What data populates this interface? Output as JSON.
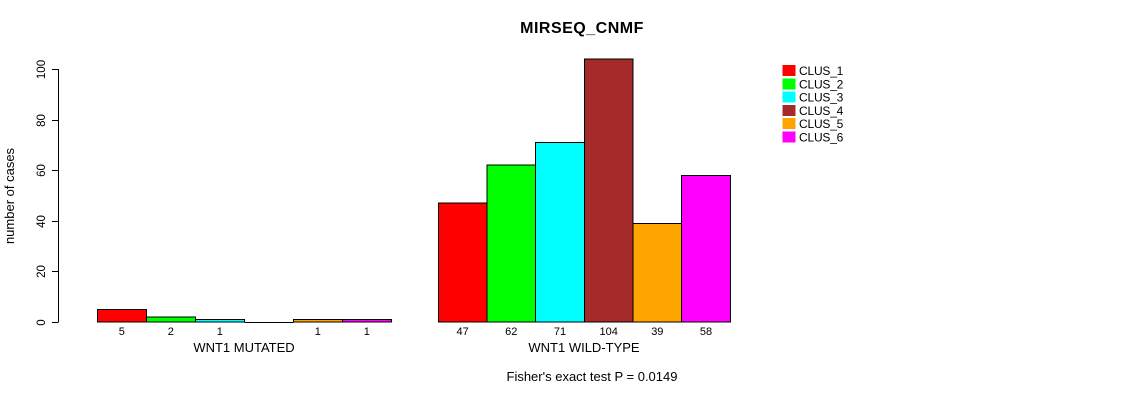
{
  "title": "MIRSEQ_CNMF",
  "chart_data": {
    "type": "bar",
    "title": "MIRSEQ_CNMF",
    "xlabel": "",
    "ylabel": "number of cases",
    "ylim": [
      0,
      104
    ],
    "yticks": [
      0,
      20,
      40,
      60,
      80,
      100
    ],
    "grid": false,
    "legend_position": "right-outside",
    "series_names": [
      "CLUS_1",
      "CLUS_2",
      "CLUS_3",
      "CLUS_4",
      "CLUS_5",
      "CLUS_6"
    ],
    "colors": [
      "#FF0000",
      "#00FF00",
      "#00FFFF",
      "#A52A2A",
      "#FFA500",
      "#FF00FF"
    ],
    "groups": [
      {
        "label": "WNT1 MUTATED",
        "values": [
          5,
          2,
          1,
          0,
          1,
          1
        ],
        "bar_labels": [
          "5",
          "2",
          "1",
          "",
          "1",
          "1"
        ]
      },
      {
        "label": "WNT1 WILD-TYPE",
        "values": [
          47,
          62,
          71,
          104,
          39,
          58
        ],
        "bar_labels": [
          "47",
          "62",
          "71",
          "104",
          "39",
          "58"
        ]
      }
    ],
    "annotation": "Fisher's exact test P = 0.0149",
    "axis_color": "#000000",
    "bar_border_color": "#000000",
    "background_color": "#FFFFFF"
  }
}
